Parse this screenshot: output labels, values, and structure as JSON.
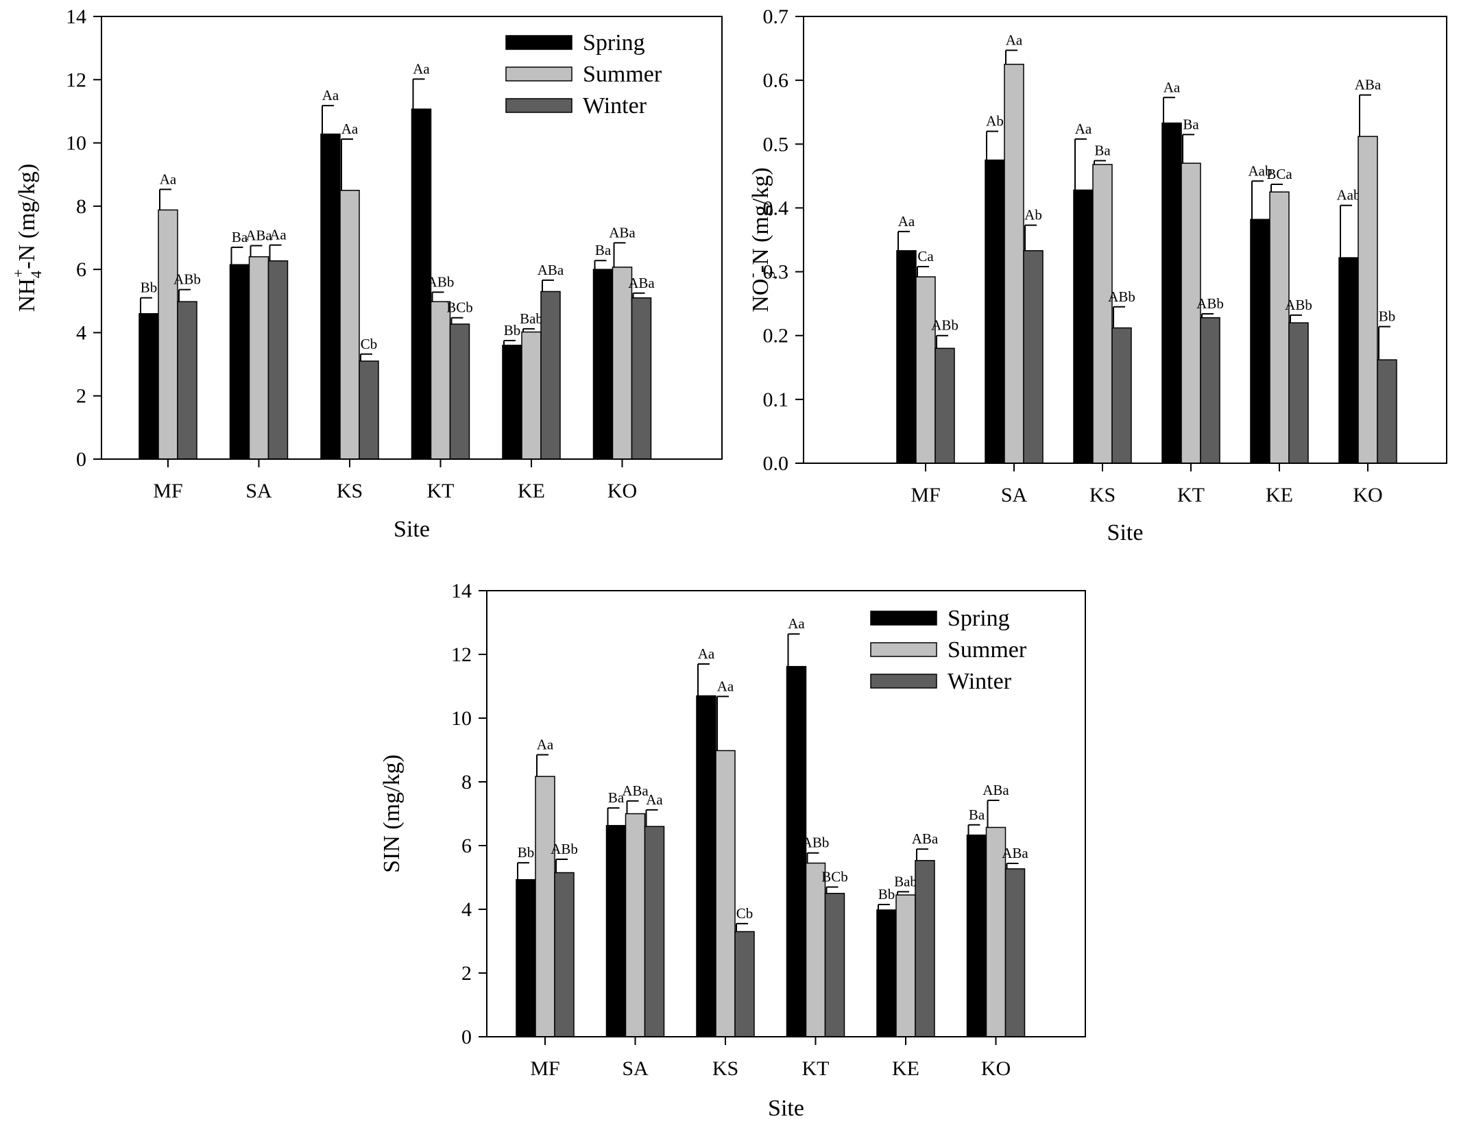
{
  "colors": {
    "spring": "#000000",
    "summer": "#c0c0c0",
    "winter": "#5e5e5e",
    "axis": "#000000"
  },
  "chart_data": [
    {
      "id": "nh4",
      "type": "bar",
      "categories": [
        "MF",
        "SA",
        "KS",
        "KT",
        "KE",
        "KO"
      ],
      "xlabel": "Site",
      "ylabel_main": "NH",
      "ylabel_sub": "4",
      "ylabel_sup": "+",
      "ylabel_rest": "-N (mg/kg)",
      "ylim": [
        0,
        14
      ],
      "yticks": [
        "0",
        "2",
        "4",
        "6",
        "8",
        "10",
        "12",
        "14"
      ],
      "legend": "top-right",
      "series": [
        {
          "name": "Spring",
          "values": [
            4.6,
            6.15,
            10.28,
            11.07,
            3.6,
            6.0
          ],
          "errors": [
            0.5,
            0.55,
            0.9,
            0.95,
            0.15,
            0.28
          ],
          "labels": [
            "Bb",
            "Ba",
            "Aa",
            "Aa",
            "Bb",
            "Ba"
          ]
        },
        {
          "name": "Summer",
          "values": [
            7.88,
            6.4,
            8.5,
            4.98,
            4.02,
            6.07
          ],
          "errors": [
            0.65,
            0.35,
            1.62,
            0.3,
            0.1,
            0.77
          ],
          "labels": [
            "Aa",
            "ABa",
            "Aa",
            "ABb",
            "Bab",
            "ABa"
          ]
        },
        {
          "name": "Winter",
          "values": [
            4.98,
            6.27,
            3.1,
            4.27,
            5.3,
            5.1
          ],
          "errors": [
            0.38,
            0.5,
            0.22,
            0.2,
            0.36,
            0.15
          ],
          "labels": [
            "ABb",
            "Aa",
            "Cb",
            "BCb",
            "ABa",
            "ABa"
          ]
        }
      ]
    },
    {
      "id": "no3",
      "type": "bar",
      "categories": [
        "MF",
        "SA",
        "KS",
        "KT",
        "KE",
        "KO"
      ],
      "xlabel": "Site",
      "ylabel_main": "NO",
      "ylabel_sub": "3",
      "ylabel_sup": "-",
      "ylabel_rest": "-N (mg/kg)",
      "ylim": [
        0,
        0.7
      ],
      "yticks": [
        "0.0",
        "0.1",
        "0.2",
        "0.3",
        "0.4",
        "0.5",
        "0.6",
        "0.7"
      ],
      "legend": "none",
      "series": [
        {
          "name": "Spring",
          "values": [
            0.333,
            0.475,
            0.428,
            0.533,
            0.382,
            0.322
          ],
          "errors": [
            0.03,
            0.045,
            0.08,
            0.04,
            0.06,
            0.082
          ],
          "labels": [
            "Aa",
            "Ab",
            "Aa",
            "Aa",
            "Aab",
            "Aab"
          ]
        },
        {
          "name": "Summer",
          "values": [
            0.292,
            0.625,
            0.468,
            0.47,
            0.425,
            0.512
          ],
          "errors": [
            0.016,
            0.022,
            0.006,
            0.045,
            0.012,
            0.065
          ],
          "labels": [
            "Ca",
            "Aa",
            "Ba",
            "Ba",
            "BCa",
            "ABa"
          ]
        },
        {
          "name": "Winter",
          "values": [
            0.18,
            0.333,
            0.212,
            0.228,
            0.22,
            0.162
          ],
          "errors": [
            0.02,
            0.04,
            0.033,
            0.006,
            0.012,
            0.052
          ],
          "labels": [
            "ABb",
            "Ab",
            "ABb",
            "ABb",
            "ABb",
            "Bb"
          ]
        }
      ]
    },
    {
      "id": "sin",
      "type": "bar",
      "categories": [
        "MF",
        "SA",
        "KS",
        "KT",
        "KE",
        "KO"
      ],
      "xlabel": "Site",
      "ylabel_main": "SIN (mg/kg)",
      "ylabel_sub": "",
      "ylabel_sup": "",
      "ylabel_rest": "",
      "ylim": [
        0,
        14
      ],
      "yticks": [
        "0",
        "2",
        "4",
        "6",
        "8",
        "10",
        "12",
        "14"
      ],
      "legend": "top-right",
      "series": [
        {
          "name": "Spring",
          "values": [
            4.93,
            6.63,
            10.7,
            11.62,
            3.98,
            6.33
          ],
          "errors": [
            0.53,
            0.55,
            1.0,
            1.02,
            0.17,
            0.32
          ],
          "labels": [
            "Bb",
            "Ba",
            "Aa",
            "Aa",
            "Bb",
            "Ba"
          ]
        },
        {
          "name": "Summer",
          "values": [
            8.17,
            7.0,
            8.98,
            5.45,
            4.45,
            6.57
          ],
          "errors": [
            0.68,
            0.4,
            1.7,
            0.32,
            0.1,
            0.85
          ],
          "labels": [
            "Aa",
            "ABa",
            "Aa",
            "ABb",
            "Bab",
            "ABa"
          ]
        },
        {
          "name": "Winter",
          "values": [
            5.15,
            6.6,
            3.3,
            4.5,
            5.53,
            5.27
          ],
          "errors": [
            0.42,
            0.52,
            0.25,
            0.2,
            0.36,
            0.17
          ],
          "labels": [
            "ABb",
            "Aa",
            "Cb",
            "BCb",
            "ABa",
            "ABa"
          ]
        }
      ]
    }
  ]
}
